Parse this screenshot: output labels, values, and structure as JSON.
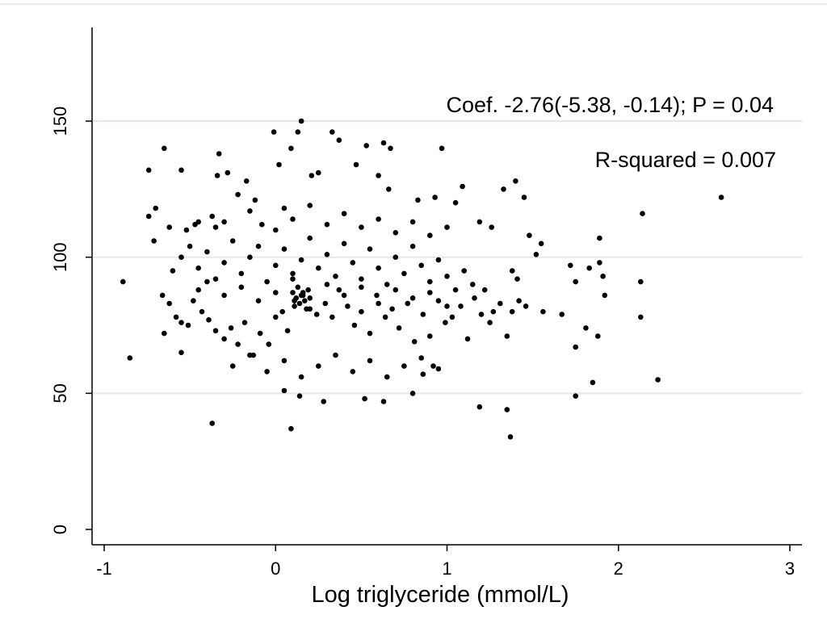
{
  "chart_data": {
    "type": "scatter",
    "title": "",
    "xlabel": "Log triglyceride (mmol/L)",
    "ylabel": "",
    "xlim": [
      -1,
      3
    ],
    "ylim": [
      0,
      150
    ],
    "xticks": [
      "-1",
      "0",
      "1",
      "2",
      "3"
    ],
    "yticks": [
      "0",
      "50",
      "100",
      "150"
    ],
    "grid": "horizontal",
    "annotations": [
      "Coef. -2.76(-5.38, -0.14); P = 0.04",
      "R-squared = 0.007"
    ],
    "colors": {
      "points": "#000000",
      "gridline": "#dde9ea",
      "axis": "#000000"
    },
    "series": [
      {
        "points": [
          [
            -0.89,
            91
          ],
          [
            -0.85,
            63
          ],
          [
            -0.74,
            132
          ],
          [
            -0.74,
            115
          ],
          [
            -0.7,
            118
          ],
          [
            -0.71,
            106
          ],
          [
            -0.65,
            140
          ],
          [
            -0.62,
            111
          ],
          [
            -0.55,
            132
          ],
          [
            -0.52,
            110
          ],
          [
            -0.47,
            112
          ],
          [
            -0.45,
            113
          ],
          [
            -0.37,
            115
          ],
          [
            -0.35,
            111
          ],
          [
            -0.33,
            138
          ],
          [
            -0.34,
            130
          ],
          [
            -0.28,
            131
          ],
          [
            -0.22,
            123
          ],
          [
            -0.17,
            128
          ],
          [
            -0.12,
            121
          ],
          [
            -0.08,
            112
          ],
          [
            -0.01,
            146
          ],
          [
            0.02,
            134
          ],
          [
            0.05,
            118
          ],
          [
            0.09,
            140
          ],
          [
            0.13,
            146
          ],
          [
            0.15,
            150
          ],
          [
            0.21,
            130
          ],
          [
            0.25,
            131
          ],
          [
            0.33,
            146
          ],
          [
            0.37,
            143
          ],
          [
            0.47,
            134
          ],
          [
            0.53,
            141
          ],
          [
            0.63,
            142
          ],
          [
            0.67,
            140
          ],
          [
            0.6,
            130
          ],
          [
            0.66,
            125
          ],
          [
            0.83,
            121
          ],
          [
            0.97,
            140
          ],
          [
            0.93,
            122
          ],
          [
            1.05,
            120
          ],
          [
            1.09,
            126
          ],
          [
            1.19,
            113
          ],
          [
            1.26,
            111
          ],
          [
            1.33,
            125
          ],
          [
            1.4,
            128
          ],
          [
            1.45,
            122
          ],
          [
            1.48,
            108
          ],
          [
            1.52,
            101
          ],
          [
            1.55,
            105
          ],
          [
            1.56,
            80
          ],
          [
            1.67,
            79
          ],
          [
            1.72,
            97
          ],
          [
            1.75,
            91
          ],
          [
            1.75,
            67
          ],
          [
            1.75,
            49
          ],
          [
            1.81,
            74
          ],
          [
            1.83,
            96
          ],
          [
            1.85,
            54
          ],
          [
            1.88,
            71
          ],
          [
            1.89,
            98
          ],
          [
            1.89,
            107
          ],
          [
            1.91,
            93
          ],
          [
            1.92,
            86
          ],
          [
            2.13,
            91
          ],
          [
            2.13,
            78
          ],
          [
            2.14,
            116
          ],
          [
            2.23,
            55
          ],
          [
            2.6,
            122
          ],
          [
            1.37,
            34
          ],
          [
            1.35,
            44
          ],
          [
            1.19,
            45
          ],
          [
            1.35,
            71
          ],
          [
            1.27,
            80
          ],
          [
            1.31,
            83
          ],
          [
            1.38,
            80
          ],
          [
            1.42,
            84
          ],
          [
            1.46,
            82
          ],
          [
            1.41,
            92
          ],
          [
            1.38,
            95
          ],
          [
            1.22,
            88
          ],
          [
            1.25,
            76
          ],
          [
            -0.37,
            39
          ],
          [
            0.09,
            37
          ],
          [
            0.14,
            49
          ],
          [
            0.05,
            51
          ],
          [
            0.28,
            47
          ],
          [
            0.52,
            48
          ],
          [
            0.63,
            47
          ],
          [
            0.8,
            50
          ],
          [
            0.86,
            57
          ],
          [
            0.92,
            60
          ],
          [
            -0.66,
            86
          ],
          [
            -0.62,
            83
          ],
          [
            -0.58,
            78
          ],
          [
            -0.55,
            76
          ],
          [
            -0.51,
            75
          ],
          [
            -0.48,
            84
          ],
          [
            -0.43,
            80
          ],
          [
            -0.39,
            77
          ],
          [
            -0.35,
            73
          ],
          [
            -0.3,
            70
          ],
          [
            -0.26,
            74
          ],
          [
            -0.22,
            68
          ],
          [
            -0.18,
            76
          ],
          [
            -0.13,
            64
          ],
          [
            -0.09,
            72
          ],
          [
            -0.04,
            68
          ],
          [
            0.0,
            78
          ],
          [
            0.04,
            80
          ],
          [
            0.07,
            73
          ],
          [
            0.11,
            84
          ],
          [
            0.16,
            86
          ],
          [
            0.2,
            81
          ],
          [
            0.24,
            79
          ],
          [
            0.29,
            83
          ],
          [
            0.33,
            78
          ],
          [
            0.37,
            88
          ],
          [
            0.42,
            82
          ],
          [
            0.46,
            75
          ],
          [
            0.5,
            80
          ],
          [
            0.55,
            72
          ],
          [
            0.59,
            86
          ],
          [
            0.64,
            78
          ],
          [
            0.68,
            81
          ],
          [
            0.72,
            74
          ],
          [
            0.77,
            83
          ],
          [
            0.81,
            69
          ],
          [
            0.86,
            79
          ],
          [
            0.9,
            71
          ],
          [
            0.95,
            84
          ],
          [
            0.99,
            76
          ],
          [
            1.03,
            78
          ],
          [
            1.08,
            82
          ],
          [
            1.12,
            70
          ],
          [
            1.16,
            85
          ],
          [
            1.2,
            79
          ],
          [
            -0.6,
            95
          ],
          [
            -0.55,
            100
          ],
          [
            -0.5,
            104
          ],
          [
            -0.45,
            96
          ],
          [
            -0.4,
            102
          ],
          [
            -0.35,
            92
          ],
          [
            -0.3,
            98
          ],
          [
            -0.25,
            106
          ],
          [
            -0.2,
            94
          ],
          [
            -0.15,
            100
          ],
          [
            -0.1,
            104
          ],
          [
            -0.05,
            91
          ],
          [
            0.0,
            97
          ],
          [
            0.05,
            103
          ],
          [
            0.1,
            94
          ],
          [
            0.15,
            99
          ],
          [
            0.2,
            107
          ],
          [
            0.25,
            96
          ],
          [
            0.3,
            101
          ],
          [
            0.35,
            93
          ],
          [
            0.4,
            105
          ],
          [
            0.45,
            98
          ],
          [
            0.5,
            92
          ],
          [
            0.55,
            103
          ],
          [
            0.6,
            96
          ],
          [
            0.65,
            90
          ],
          [
            0.7,
            100
          ],
          [
            0.75,
            94
          ],
          [
            0.8,
            104
          ],
          [
            0.85,
            97
          ],
          [
            0.9,
            91
          ],
          [
            0.95,
            99
          ],
          [
            1.0,
            93
          ],
          [
            1.05,
            88
          ],
          [
            1.1,
            95
          ],
          [
            1.15,
            90
          ],
          [
            -0.45,
            88
          ],
          [
            -0.4,
            91
          ],
          [
            -0.3,
            86
          ],
          [
            -0.2,
            89
          ],
          [
            -0.1,
            84
          ],
          [
            0.0,
            87
          ],
          [
            0.1,
            92
          ],
          [
            0.2,
            85
          ],
          [
            0.3,
            90
          ],
          [
            0.4,
            86
          ],
          [
            0.5,
            89
          ],
          [
            0.6,
            83
          ],
          [
            0.7,
            88
          ],
          [
            0.8,
            85
          ],
          [
            0.9,
            87
          ],
          [
            1.0,
            82
          ],
          [
            0.12,
            85
          ],
          [
            0.14,
            83
          ],
          [
            0.16,
            87
          ],
          [
            0.13,
            89
          ],
          [
            0.11,
            82
          ],
          [
            0.17,
            84
          ],
          [
            0.15,
            86
          ],
          [
            0.18,
            81
          ],
          [
            0.1,
            87
          ],
          [
            0.19,
            88
          ],
          [
            -0.3,
            113
          ],
          [
            -0.15,
            117
          ],
          [
            0.0,
            110
          ],
          [
            0.1,
            114
          ],
          [
            0.2,
            119
          ],
          [
            0.3,
            112
          ],
          [
            0.4,
            116
          ],
          [
            0.5,
            111
          ],
          [
            0.6,
            114
          ],
          [
            0.7,
            109
          ],
          [
            0.8,
            113
          ],
          [
            0.9,
            108
          ],
          [
            1.0,
            111
          ],
          [
            -0.25,
            60
          ],
          [
            -0.15,
            64
          ],
          [
            -0.05,
            58
          ],
          [
            0.05,
            62
          ],
          [
            0.15,
            56
          ],
          [
            0.25,
            60
          ],
          [
            0.35,
            64
          ],
          [
            0.45,
            58
          ],
          [
            0.55,
            62
          ],
          [
            0.65,
            56
          ],
          [
            0.75,
            60
          ],
          [
            0.85,
            63
          ],
          [
            0.95,
            59
          ],
          [
            -0.55,
            65
          ],
          [
            -0.65,
            72
          ]
        ]
      }
    ]
  }
}
